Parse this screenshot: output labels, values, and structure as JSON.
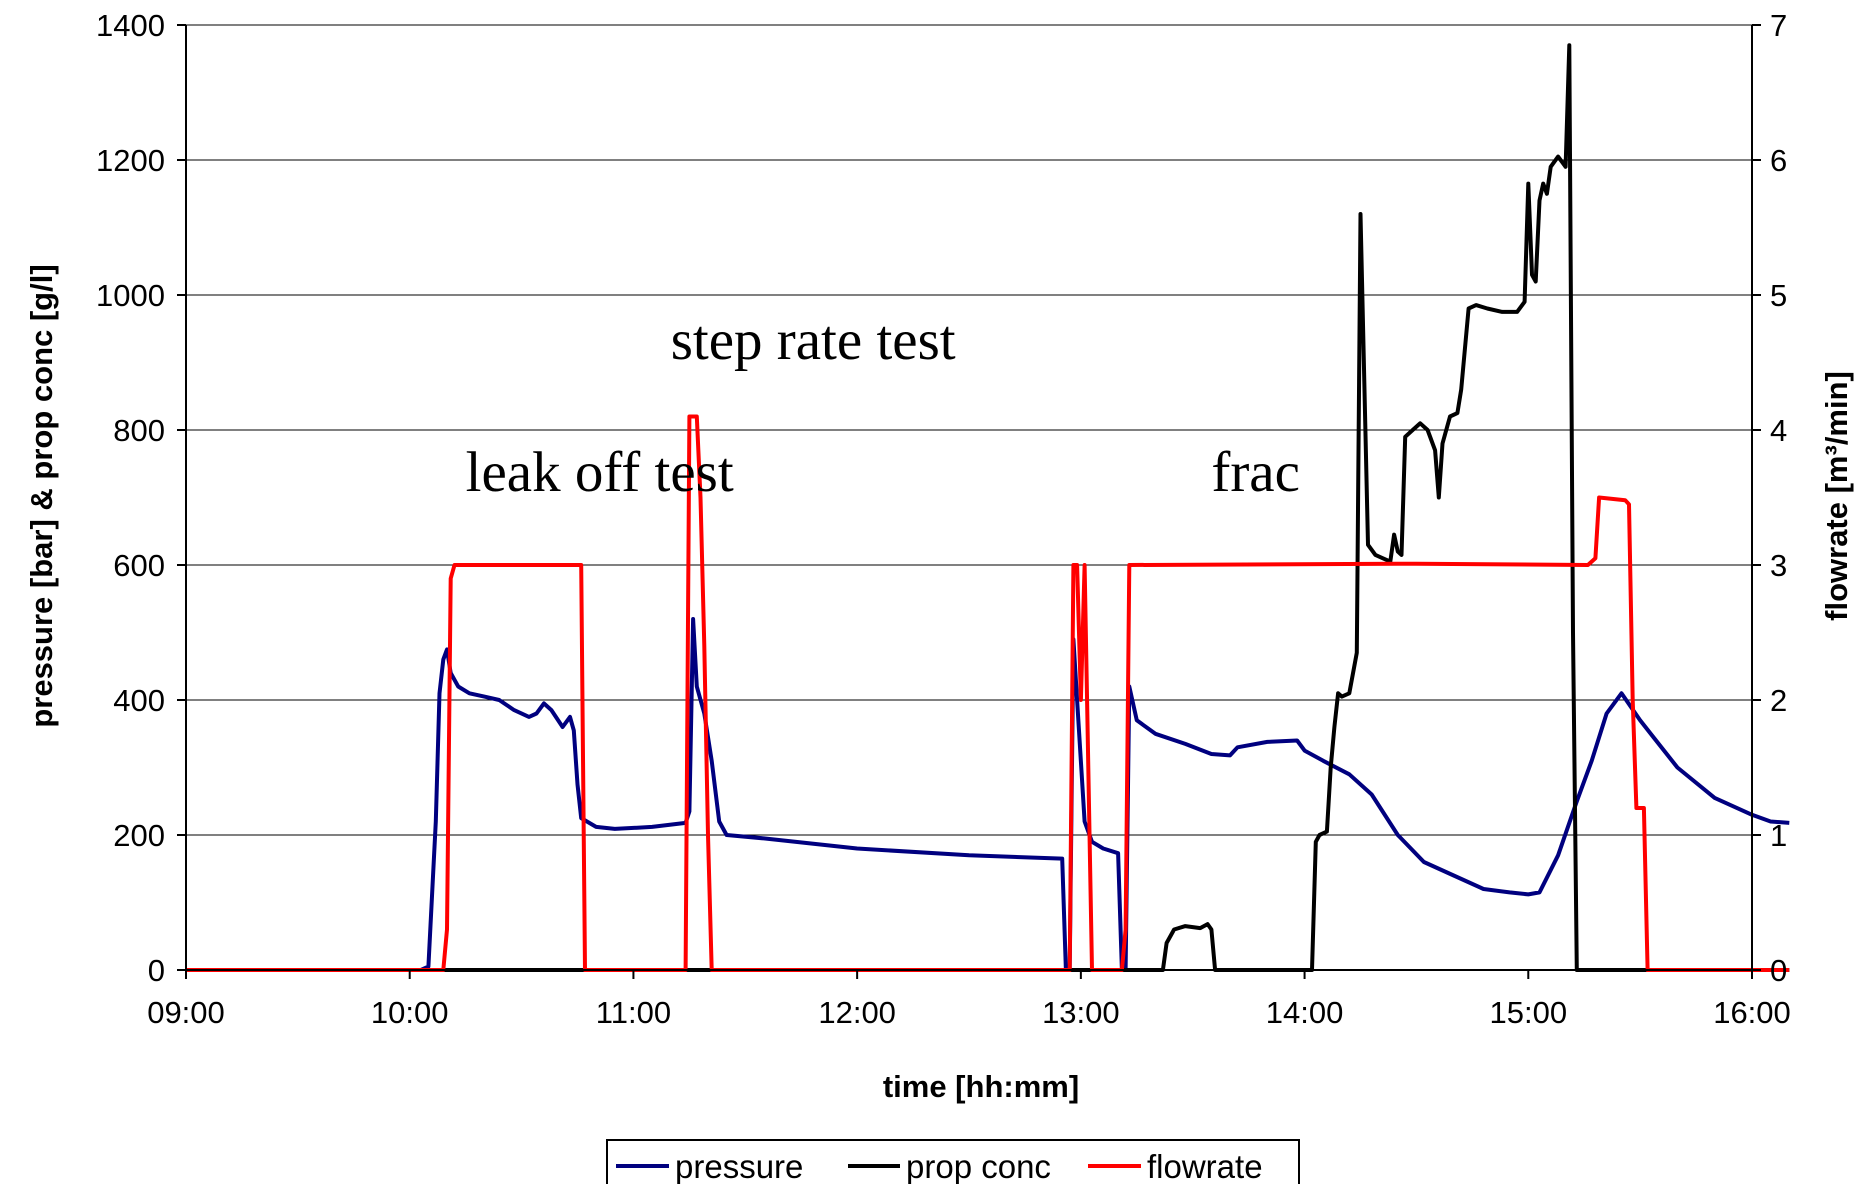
{
  "chart_data": {
    "type": "line",
    "xlabel": "time [hh:mm]",
    "ylabel": "pressure [bar] & prop conc [g/l]",
    "y2label": "flowrate [m³/min]",
    "x_ticks": [
      "09:00",
      "10:00",
      "11:00",
      "12:00",
      "13:00",
      "14:00",
      "15:00",
      "16:00"
    ],
    "xlim": [
      "09:00",
      "16:00"
    ],
    "ylim": [
      0,
      1400
    ],
    "y_ticks": [
      0,
      200,
      400,
      600,
      800,
      1000,
      1200,
      1400
    ],
    "y2lim": [
      0,
      7
    ],
    "y2_ticks": [
      0,
      1,
      2,
      3,
      4,
      5,
      6,
      7
    ],
    "grid": "horizontal major gridlines",
    "legend_position": "bottom",
    "annotations": [
      {
        "text": "leak off test",
        "x": "10:15",
        "y": 710
      },
      {
        "text": "step rate test",
        "x": "11:10",
        "y": 905
      },
      {
        "text": "frac",
        "x": "13:35",
        "y": 710
      }
    ],
    "series": [
      {
        "name": "pressure",
        "axis": "left",
        "color": "#00007f",
        "points": [
          [
            "09:00",
            0
          ],
          [
            "10:03",
            0
          ],
          [
            "10:05",
            5
          ],
          [
            "10:07",
            220
          ],
          [
            "10:08",
            410
          ],
          [
            "10:09",
            460
          ],
          [
            "10:10",
            475
          ],
          [
            "10:11",
            440
          ],
          [
            "10:13",
            420
          ],
          [
            "10:16",
            410
          ],
          [
            "10:20",
            405
          ],
          [
            "10:24",
            400
          ],
          [
            "10:28",
            385
          ],
          [
            "10:32",
            375
          ],
          [
            "10:34",
            380
          ],
          [
            "10:36",
            395
          ],
          [
            "10:38",
            385
          ],
          [
            "10:41",
            360
          ],
          [
            "10:43",
            375
          ],
          [
            "10:44",
            355
          ],
          [
            "10:45",
            275
          ],
          [
            "10:46",
            225
          ],
          [
            "10:50",
            212
          ],
          [
            "10:55",
            209
          ],
          [
            "11:05",
            212
          ],
          [
            "11:14",
            218
          ],
          [
            "11:15",
            235
          ],
          [
            "11:16",
            520
          ],
          [
            "11:17",
            420
          ],
          [
            "11:19",
            380
          ],
          [
            "11:21",
            310
          ],
          [
            "11:23",
            220
          ],
          [
            "11:25",
            200
          ],
          [
            "11:35",
            195
          ],
          [
            "12:00",
            180
          ],
          [
            "12:30",
            170
          ],
          [
            "12:55",
            165
          ],
          [
            "12:56",
            0
          ],
          [
            "12:57",
            0
          ],
          [
            "12:58",
            490
          ],
          [
            "12:59",
            400
          ],
          [
            "13:01",
            220
          ],
          [
            "13:03",
            190
          ],
          [
            "13:06",
            180
          ],
          [
            "13:10",
            173
          ],
          [
            "13:11",
            0
          ],
          [
            "13:12",
            0
          ],
          [
            "13:13",
            420
          ],
          [
            "13:15",
            370
          ],
          [
            "13:20",
            350
          ],
          [
            "13:28",
            335
          ],
          [
            "13:35",
            320
          ],
          [
            "13:40",
            318
          ],
          [
            "13:42",
            330
          ],
          [
            "13:50",
            338
          ],
          [
            "13:58",
            340
          ],
          [
            "14:00",
            325
          ],
          [
            "14:05",
            310
          ],
          [
            "14:12",
            290
          ],
          [
            "14:18",
            260
          ],
          [
            "14:25",
            200
          ],
          [
            "14:32",
            160
          ],
          [
            "14:40",
            140
          ],
          [
            "14:48",
            120
          ],
          [
            "14:55",
            115
          ],
          [
            "15:00",
            112
          ],
          [
            "15:03",
            115
          ],
          [
            "15:08",
            170
          ],
          [
            "15:13",
            250
          ],
          [
            "15:17",
            310
          ],
          [
            "15:21",
            380
          ],
          [
            "15:25",
            410
          ],
          [
            "15:30",
            370
          ],
          [
            "15:40",
            300
          ],
          [
            "15:50",
            255
          ],
          [
            "16:00",
            230
          ],
          [
            "16:05",
            220
          ],
          [
            "16:10",
            218
          ]
        ]
      },
      {
        "name": "prop conc",
        "axis": "left",
        "color": "#000000",
        "points": [
          [
            "09:00",
            0
          ],
          [
            "13:22",
            0
          ],
          [
            "13:23",
            40
          ],
          [
            "13:25",
            60
          ],
          [
            "13:28",
            65
          ],
          [
            "13:32",
            62
          ],
          [
            "13:34",
            68
          ],
          [
            "13:35",
            60
          ],
          [
            "13:36",
            0
          ],
          [
            "13:38",
            0
          ],
          [
            "14:00",
            0
          ],
          [
            "14:02",
            0
          ],
          [
            "14:03",
            190
          ],
          [
            "14:04",
            200
          ],
          [
            "14:06",
            205
          ],
          [
            "14:07",
            300
          ],
          [
            "14:08",
            360
          ],
          [
            "14:09",
            410
          ],
          [
            "14:10",
            405
          ],
          [
            "14:12",
            410
          ],
          [
            "14:14",
            470
          ],
          [
            "14:15",
            1120
          ],
          [
            "14:17",
            630
          ],
          [
            "14:19",
            615
          ],
          [
            "14:21",
            610
          ],
          [
            "14:23",
            605
          ],
          [
            "14:24",
            645
          ],
          [
            "14:25",
            620
          ],
          [
            "14:26",
            615
          ],
          [
            "14:27",
            790
          ],
          [
            "14:29",
            800
          ],
          [
            "14:31",
            810
          ],
          [
            "14:33",
            800
          ],
          [
            "14:35",
            770
          ],
          [
            "14:36",
            700
          ],
          [
            "14:37",
            780
          ],
          [
            "14:39",
            820
          ],
          [
            "14:41",
            825
          ],
          [
            "14:42",
            860
          ],
          [
            "14:44",
            980
          ],
          [
            "14:46",
            985
          ],
          [
            "14:49",
            980
          ],
          [
            "14:53",
            975
          ],
          [
            "14:57",
            975
          ],
          [
            "14:59",
            990
          ],
          [
            "15:00",
            1165
          ],
          [
            "15:01",
            1030
          ],
          [
            "15:02",
            1020
          ],
          [
            "15:03",
            1140
          ],
          [
            "15:04",
            1165
          ],
          [
            "15:05",
            1150
          ],
          [
            "15:06",
            1190
          ],
          [
            "15:08",
            1205
          ],
          [
            "15:10",
            1190
          ],
          [
            "15:11",
            1370
          ],
          [
            "15:12",
            500
          ],
          [
            "15:13",
            0
          ],
          [
            "16:10",
            0
          ]
        ]
      },
      {
        "name": "flowrate",
        "axis": "right",
        "color": "#ff0000",
        "points": [
          [
            "09:00",
            0
          ],
          [
            "10:09",
            0
          ],
          [
            "10:10",
            0.3
          ],
          [
            "10:11",
            2.9
          ],
          [
            "10:12",
            3.0
          ],
          [
            "10:45",
            3.0
          ],
          [
            "10:46",
            3.0
          ],
          [
            "10:47",
            0
          ],
          [
            "11:14",
            0
          ],
          [
            "11:15",
            4.1
          ],
          [
            "11:17",
            4.1
          ],
          [
            "11:18",
            3.5
          ],
          [
            "11:19",
            2.4
          ],
          [
            "11:20",
            1.0
          ],
          [
            "11:21",
            0
          ],
          [
            "12:57",
            0
          ],
          [
            "12:58",
            3.0
          ],
          [
            "12:59",
            3.0
          ],
          [
            "13:00",
            2.0
          ],
          [
            "13:01",
            3.0
          ],
          [
            "13:02",
            1.5
          ],
          [
            "13:03",
            0
          ],
          [
            "13:11",
            0
          ],
          [
            "13:12",
            0.3
          ],
          [
            "13:13",
            3.0
          ],
          [
            "14:30",
            3.01
          ],
          [
            "15:16",
            3.0
          ],
          [
            "15:18",
            3.05
          ],
          [
            "15:19",
            3.5
          ],
          [
            "15:26",
            3.48
          ],
          [
            "15:27",
            3.45
          ],
          [
            "15:28",
            2.0
          ],
          [
            "15:29",
            1.2
          ],
          [
            "15:31",
            1.2
          ],
          [
            "15:32",
            0
          ],
          [
            "16:10",
            0
          ]
        ]
      }
    ]
  }
}
